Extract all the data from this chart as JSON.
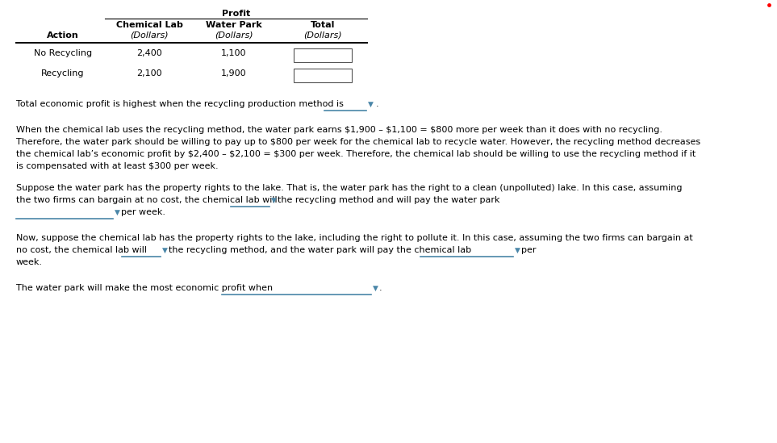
{
  "title_profit": "Profit",
  "col1_header": "Chemical Lab",
  "col2_header": "Water Park",
  "col3_header": "Total",
  "sub_header": "(Dollars)",
  "row_header": "Action",
  "row1_label": "No Recycling",
  "row2_label": "Recycling",
  "row1_col1": "2,400",
  "row1_col2": "1,100",
  "row2_col1": "2,100",
  "row2_col2": "1,900",
  "line1": "Total economic profit is highest when the recycling production method is",
  "line2": "When the chemical lab uses the recycling method, the water park earns $1,900 – $1,100 = $800 more per week than it does with no recycling.",
  "line3": "Therefore, the water park should be willing to pay up to $800 per week for the chemical lab to recycle water. However, the recycling method decreases",
  "line4": "the chemical lab’s economic profit by $2,400 – $2,100 = $300 per week. Therefore, the chemical lab should be willing to use the recycling method if it",
  "line5": "is compensated with at least $300 per week.",
  "line6": "Suppose the water park has the property rights to the lake. That is, the water park has the right to a clean (unpolluted) lake. In this case, assuming",
  "line7_a": "the two firms can bargain at no cost, the chemical lab will",
  "line7_b": "the recycling method and will pay the water park",
  "line8": "per week.",
  "line9": "Now, suppose the chemical lab has the property rights to the lake, including the right to pollute it. In this case, assuming the two firms can bargain at",
  "line10_a": "no cost, the chemical lab will",
  "line10_b": "the recycling method, and the water park will pay the chemical lab",
  "line10_c": "per",
  "line11": "week.",
  "line12_a": "The water park will make the most economic profit when",
  "bg_color": "#ffffff",
  "text_color": "#000000",
  "dropdown_color": "#4a86a8",
  "input_box_color": "#ffffff",
  "input_box_border": "#555555",
  "font_size": 8.0,
  "header_font_size": 8.0
}
